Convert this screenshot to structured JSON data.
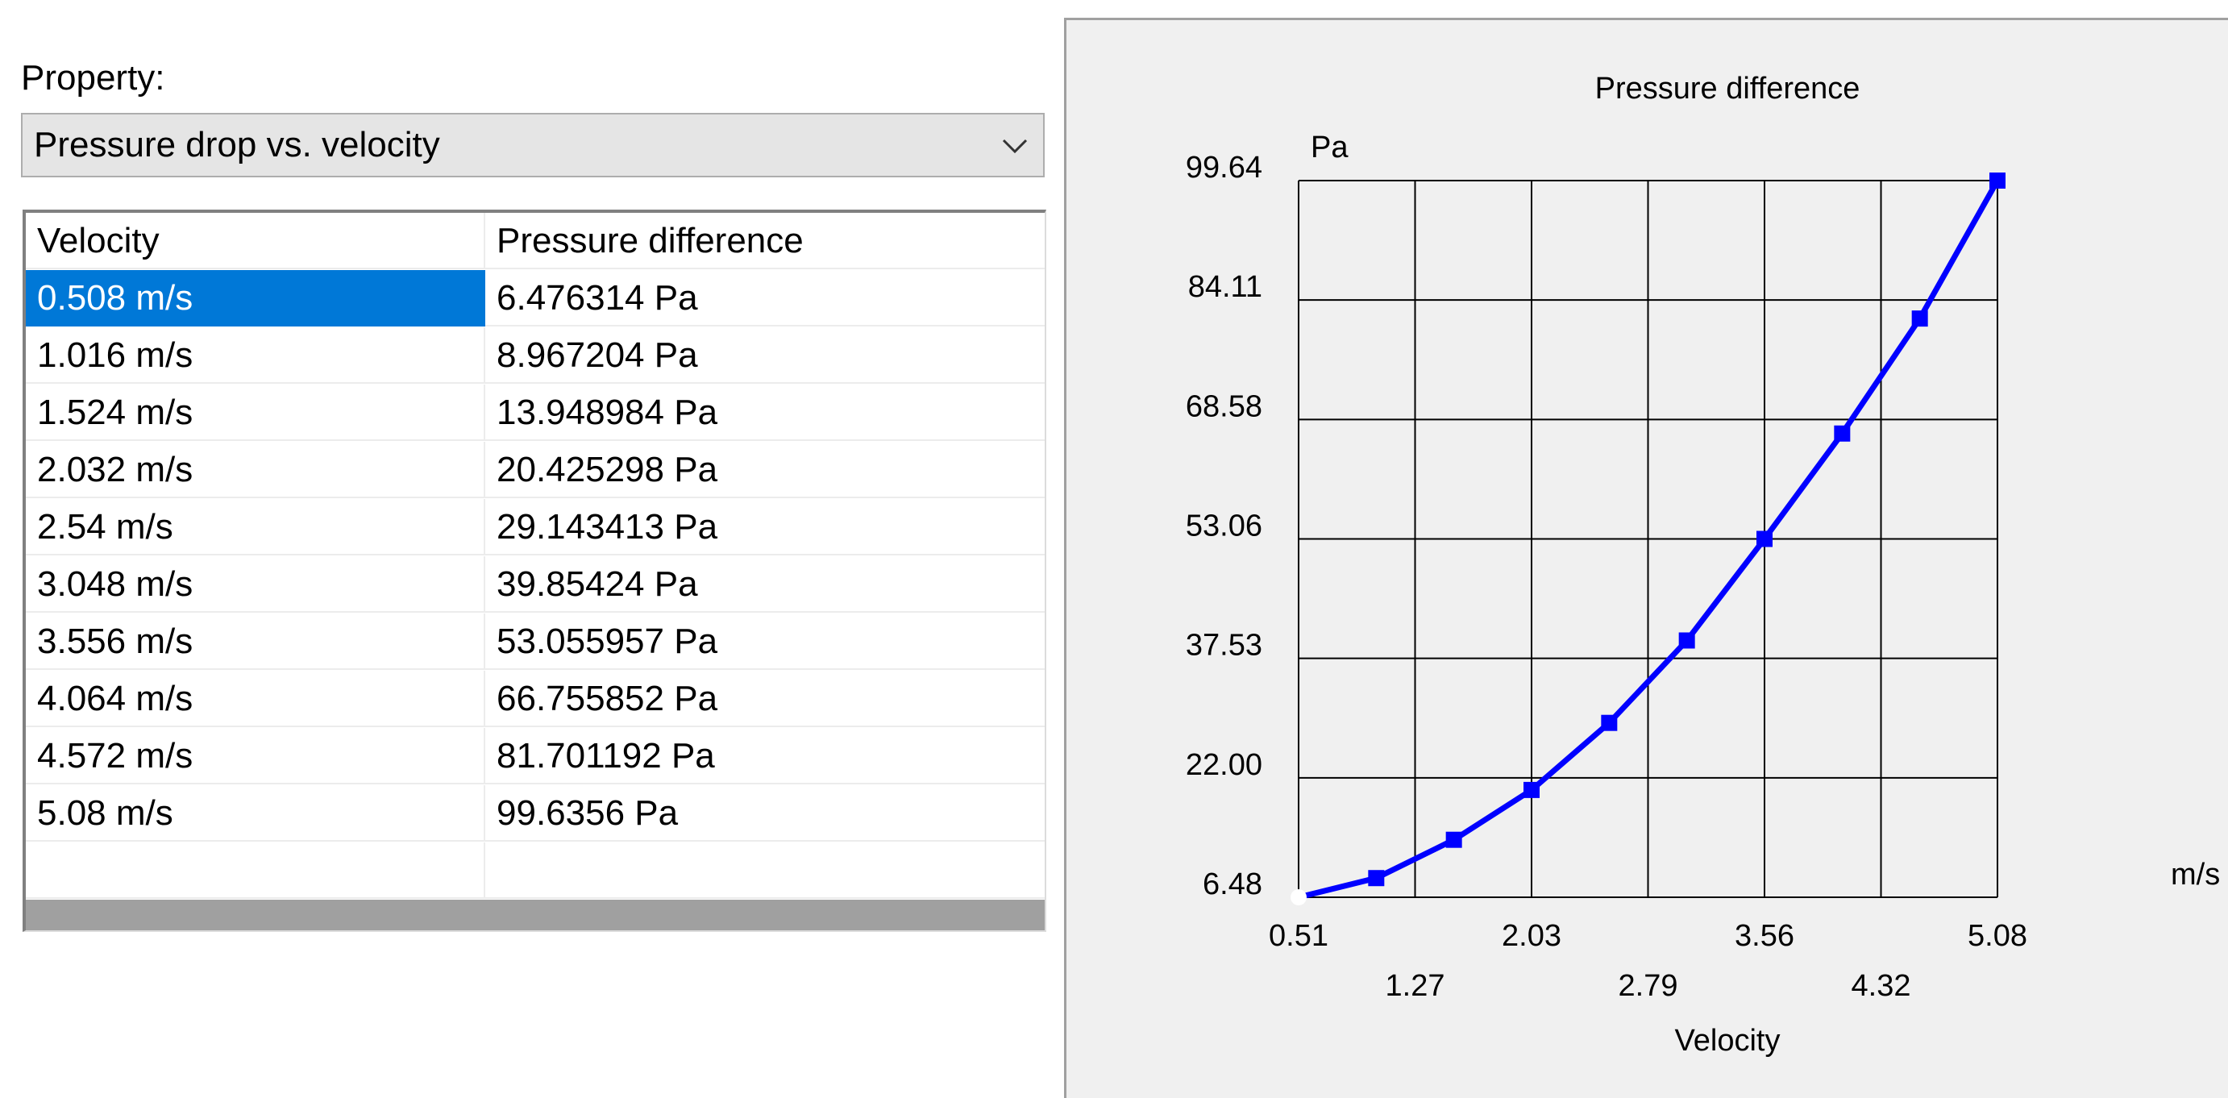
{
  "property": {
    "label": "Property:",
    "selected": "Pressure drop vs. velocity"
  },
  "table": {
    "columns": [
      "Velocity",
      "Pressure difference"
    ],
    "rows": [
      [
        "0.508 m/s",
        "6.476314 Pa"
      ],
      [
        "1.016 m/s",
        "8.967204 Pa"
      ],
      [
        "1.524 m/s",
        "13.948984 Pa"
      ],
      [
        "2.032 m/s",
        "20.425298 Pa"
      ],
      [
        "2.54 m/s",
        "29.143413 Pa"
      ],
      [
        "3.048 m/s",
        "39.85424 Pa"
      ],
      [
        "3.556 m/s",
        "53.055957 Pa"
      ],
      [
        "4.064 m/s",
        "66.755852 Pa"
      ],
      [
        "4.572 m/s",
        "81.701192 Pa"
      ],
      [
        "5.08 m/s",
        "99.6356 Pa"
      ]
    ],
    "selected_row": 0
  },
  "colors": {
    "series": "#0000ff",
    "selection": "#0078d7"
  },
  "chart_data": {
    "type": "line",
    "title": "Pressure difference",
    "xlabel": "Velocity",
    "x_unit": "m/s",
    "y_unit": "Pa",
    "xlim": [
      0.508,
      5.08
    ],
    "ylim": [
      6.476314,
      99.6356
    ],
    "x_ticks": [
      "0.51",
      "1.27",
      "2.03",
      "2.79",
      "3.56",
      "4.32",
      "5.08"
    ],
    "y_ticks": [
      "6.48",
      "22.00",
      "37.53",
      "53.06",
      "68.58",
      "84.11",
      "99.64"
    ],
    "grid": true,
    "series": [
      {
        "x": [
          0.508,
          1.016,
          1.524,
          2.032,
          2.54,
          3.048,
          3.556,
          4.064,
          4.572,
          5.08
        ],
        "y": [
          6.476314,
          8.967204,
          13.948984,
          20.425298,
          29.143413,
          39.85424,
          53.055957,
          66.755852,
          81.701192,
          99.6356
        ]
      }
    ]
  }
}
